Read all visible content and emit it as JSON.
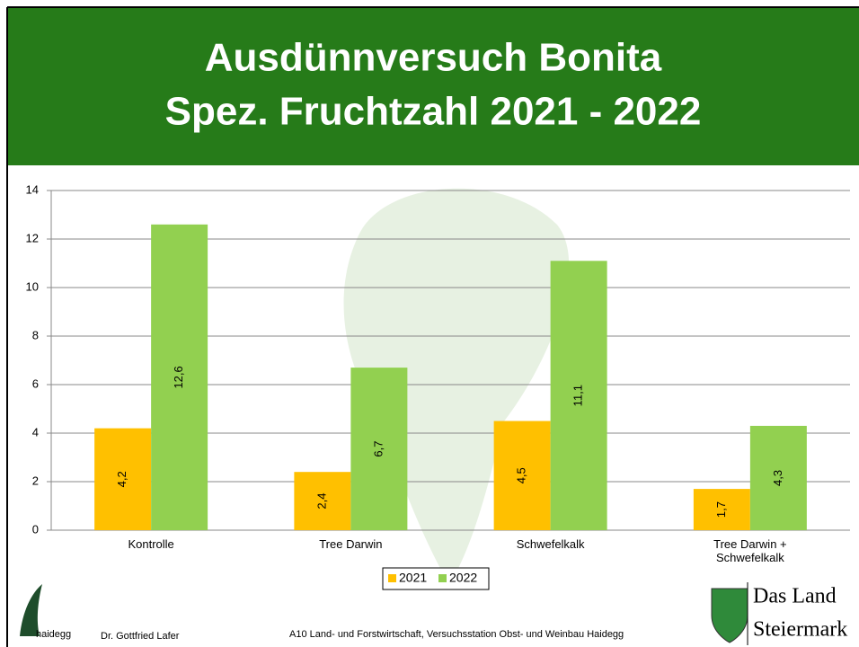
{
  "header": {
    "title_lines": [
      "Ausdünnversuch Bonita",
      "Spez. Fruchtzahl 2021 - 2022"
    ]
  },
  "chart_data": {
    "type": "bar",
    "categories": [
      "Kontrolle",
      "Tree Darwin",
      "Schwefelkalk",
      "Tree Darwin + Schwefelkalk"
    ],
    "series": [
      {
        "name": "2021",
        "color": "#ffc000",
        "values": [
          4.2,
          2.4,
          4.5,
          1.7
        ],
        "value_labels": [
          "4,2",
          "2,4",
          "4,5",
          "1,7"
        ]
      },
      {
        "name": "2022",
        "color": "#92d050",
        "values": [
          12.6,
          6.7,
          11.1,
          4.3
        ],
        "value_labels": [
          "12,6",
          "6,7",
          "11,1",
          "4,3"
        ]
      }
    ],
    "ylim": [
      0,
      14
    ],
    "yticks": [
      0,
      2,
      4,
      6,
      8,
      10,
      12,
      14
    ],
    "grid": true,
    "legend": "bottom"
  },
  "footer": {
    "logo_left": "haidegg",
    "author": "Dr. Gottfried Lafer",
    "institution": "A10 Land- und Forstwirtschaft, Versuchsstation Obst- und Weinbau Haidegg",
    "logo_right_lines": [
      "Das Land",
      "Steiermark"
    ]
  }
}
